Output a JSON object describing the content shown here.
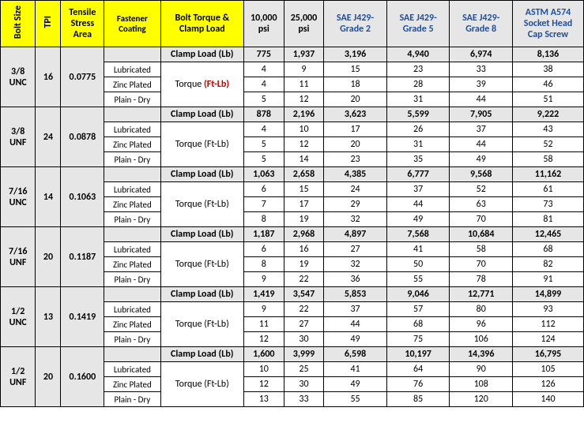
{
  "headers": {
    "boltSize": "Bolt Size",
    "tpi": "TPI",
    "tensile": "Tensile Stress Area",
    "coating": "Fastener Coating",
    "torqueClamp": "Bolt Torque & Clamp Load",
    "psi10k": "10,000 psi",
    "psi25k": "25,000 psi",
    "g2a": "SAE J429-",
    "g2b": "Grade 2",
    "g5a": "SAE J429-",
    "g5b": "Grade 5",
    "g8a": "SAE J429-",
    "g8b": "Grade 8",
    "sockA": "ASTM A574",
    "sockB": "Socket Head",
    "sockC": "Cap Screw"
  },
  "labels": {
    "clampLoad": "Clamp Load (Lb)",
    "torque": "Torque",
    "ftlb": "(Ft-Lb)",
    "torqueFtLb": "Torque (Ft-Lb)",
    "lub": "Lubricated",
    "zinc": "Zinc Plated",
    "dry": "Plain - Dry"
  },
  "rows": [
    {
      "size": "3/8 UNC",
      "tpi": "16",
      "area": "0.0775",
      "redLabel": true,
      "clamp": [
        "775",
        "1,937",
        "3,196",
        "4,940",
        "6,974",
        "8,136"
      ],
      "lub": [
        "4",
        "9",
        "15",
        "23",
        "33",
        "38"
      ],
      "zinc": [
        "4",
        "11",
        "18",
        "28",
        "39",
        "46"
      ],
      "dry": [
        "5",
        "12",
        "20",
        "31",
        "44",
        "51"
      ]
    },
    {
      "size": "3/8 UNF",
      "tpi": "24",
      "area": "0.0878",
      "redLabel": false,
      "clamp": [
        "878",
        "2,196",
        "3,623",
        "5,599",
        "7,905",
        "9,222"
      ],
      "lub": [
        "4",
        "10",
        "17",
        "26",
        "37",
        "43"
      ],
      "zinc": [
        "5",
        "12",
        "20",
        "31",
        "44",
        "52"
      ],
      "dry": [
        "5",
        "14",
        "23",
        "35",
        "49",
        "58"
      ]
    },
    {
      "size": "7/16 UNC",
      "tpi": "14",
      "area": "0.1063",
      "redLabel": false,
      "clamp": [
        "1,063",
        "2,658",
        "4,385",
        "6,777",
        "9,568",
        "11,162"
      ],
      "lub": [
        "6",
        "15",
        "24",
        "37",
        "52",
        "61"
      ],
      "zinc": [
        "7",
        "17",
        "29",
        "44",
        "63",
        "73"
      ],
      "dry": [
        "8",
        "19",
        "32",
        "49",
        "70",
        "81"
      ]
    },
    {
      "size": "7/16 UNF",
      "tpi": "20",
      "area": "0.1187",
      "redLabel": false,
      "clamp": [
        "1,187",
        "2,968",
        "4,897",
        "7,568",
        "10,684",
        "12,465"
      ],
      "lub": [
        "6",
        "16",
        "27",
        "41",
        "58",
        "68"
      ],
      "zinc": [
        "8",
        "19",
        "32",
        "50",
        "70",
        "82"
      ],
      "dry": [
        "9",
        "22",
        "36",
        "55",
        "78",
        "91"
      ]
    },
    {
      "size": "1/2 UNC",
      "tpi": "13",
      "area": "0.1419",
      "redLabel": false,
      "clamp": [
        "1,419",
        "3,547",
        "5,853",
        "9,046",
        "12,771",
        "14,899"
      ],
      "lub": [
        "9",
        "22",
        "37",
        "57",
        "80",
        "93"
      ],
      "zinc": [
        "11",
        "27",
        "44",
        "68",
        "96",
        "112"
      ],
      "dry": [
        "12",
        "30",
        "49",
        "75",
        "106",
        "124"
      ]
    },
    {
      "size": "1/2 UNF",
      "tpi": "20",
      "area": "0.1600",
      "redLabel": false,
      "clamp": [
        "1,600",
        "3,999",
        "6,598",
        "10,197",
        "14,396",
        "16,795"
      ],
      "lub": [
        "10",
        "25",
        "41",
        "64",
        "90",
        "105"
      ],
      "zinc": [
        "12",
        "30",
        "49",
        "76",
        "108",
        "126"
      ],
      "dry": [
        "13",
        "33",
        "55",
        "85",
        "120",
        "140"
      ]
    }
  ]
}
